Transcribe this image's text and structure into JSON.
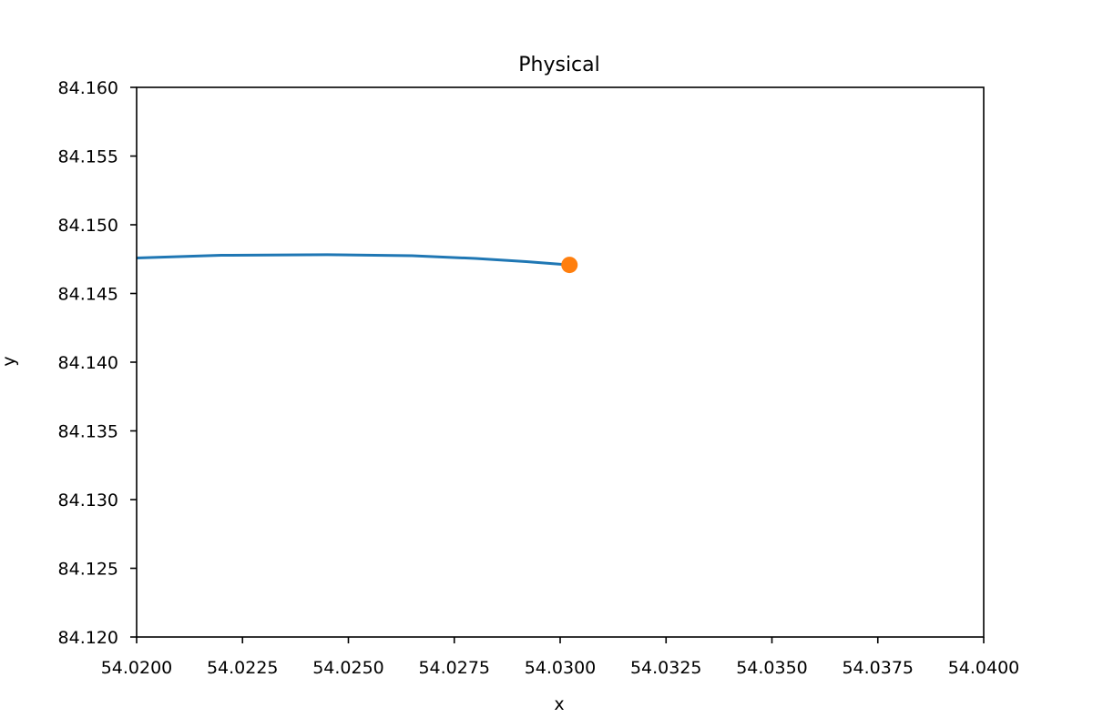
{
  "chart_data": {
    "type": "line",
    "title": "Physical",
    "xlabel": "x",
    "ylabel": "y",
    "xlim": [
      54.02,
      54.04
    ],
    "ylim": [
      84.12,
      84.16
    ],
    "x_ticks": [
      "54.0200",
      "54.0225",
      "54.0250",
      "54.0275",
      "54.0300",
      "54.0325",
      "54.0350",
      "54.0375",
      "54.0400"
    ],
    "y_ticks": [
      "84.120",
      "84.125",
      "84.130",
      "84.135",
      "84.140",
      "84.145",
      "84.150",
      "84.155",
      "84.160"
    ],
    "grid": false,
    "series": [
      {
        "color": "#1f77b4",
        "x": [
          54.02,
          54.022,
          54.0245,
          54.0265,
          54.028,
          54.0292,
          54.03022
        ],
        "y": [
          84.14758,
          84.14778,
          84.14782,
          84.14775,
          84.14755,
          84.14732,
          84.14708
        ]
      }
    ],
    "markers": [
      {
        "color": "#ff7f0e",
        "x": 54.03022,
        "y": 84.14708
      }
    ]
  }
}
